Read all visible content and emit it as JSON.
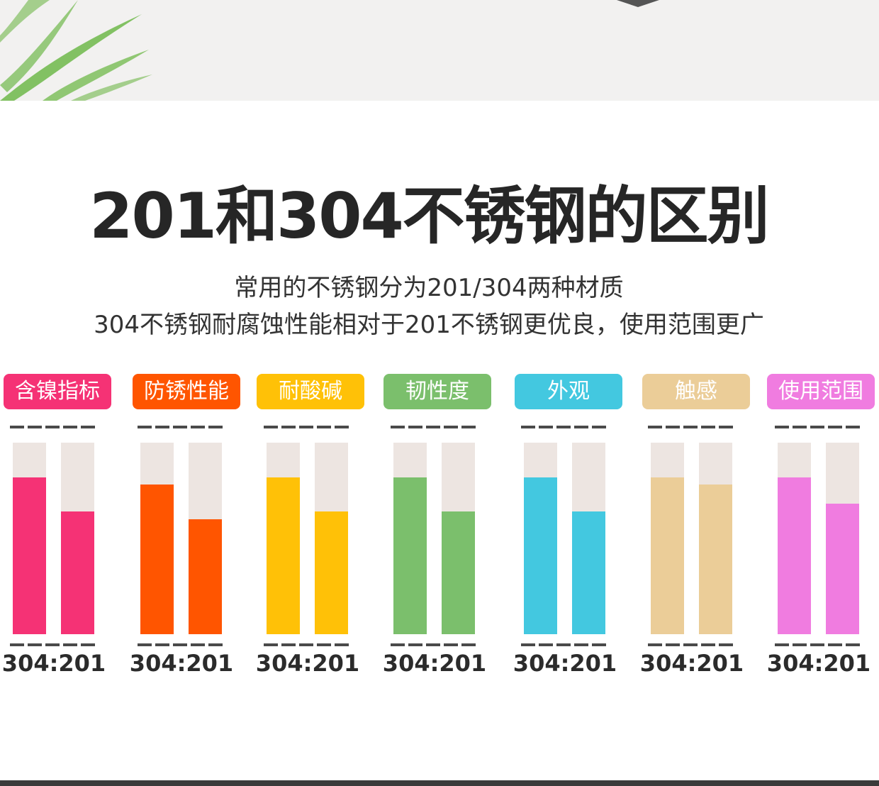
{
  "chart_data": {
    "type": "bar",
    "title": "201和304不锈钢的区别",
    "subtitle_lines": [
      "常用的不锈钢分为201/304两种材质",
      "304不锈钢耐腐蚀性能相对于201不锈钢更优良，使用范围更广"
    ],
    "ratio_label": "304:201",
    "ylim": [
      0,
      100
    ],
    "categories": [
      {
        "label": "含镍指标",
        "color": "#f53275",
        "values": [
          82,
          64
        ]
      },
      {
        "label": "防锈性能",
        "color": "#ff5500",
        "values": [
          78,
          60
        ]
      },
      {
        "label": "耐酸碱",
        "color": "#ffc107",
        "values": [
          82,
          64
        ]
      },
      {
        "label": "韧性度",
        "color": "#7bbf6c",
        "values": [
          82,
          64
        ]
      },
      {
        "label": "外观",
        "color": "#43c8e0",
        "values": [
          82,
          64
        ]
      },
      {
        "label": "触感",
        "color": "#ebcd98",
        "values": [
          82,
          78
        ]
      },
      {
        "label": "使用范围",
        "color": "#f07ce0",
        "values": [
          82,
          68
        ]
      }
    ]
  }
}
